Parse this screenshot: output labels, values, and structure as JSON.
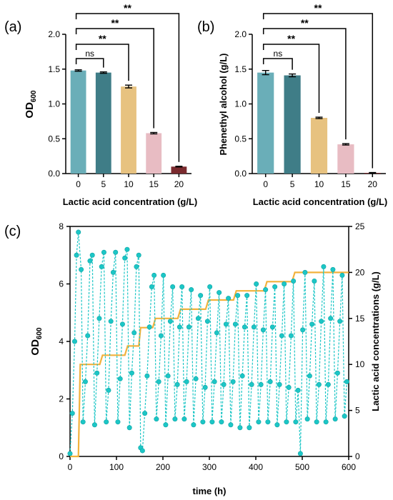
{
  "chart_data": [
    {
      "panel": "(a)",
      "type": "bar",
      "categories": [
        "0",
        "5",
        "10",
        "15",
        "20"
      ],
      "values": [
        1.48,
        1.45,
        1.25,
        0.58,
        0.1
      ],
      "errors": [
        0.01,
        0.01,
        0.02,
        0.01,
        0.005
      ],
      "colors": [
        "#6aaeb8",
        "#3f7d87",
        "#e7c280",
        "#e8bcc3",
        "#7a2a2e"
      ],
      "xlabel": "Lactic acid concentration (g/L)",
      "ylabel_main": "OD",
      "ylabel_sub": "600",
      "ylim": [
        0,
        2.0
      ],
      "yticks": [
        "0.0",
        "0.5",
        "1.0",
        "1.5",
        "2.0"
      ],
      "comparisons": [
        {
          "from": 0,
          "to": 1,
          "label": "ns"
        },
        {
          "from": 0,
          "to": 2,
          "label": "**"
        },
        {
          "from": 0,
          "to": 3,
          "label": "**"
        },
        {
          "from": 0,
          "to": 4,
          "label": "**"
        }
      ]
    },
    {
      "panel": "(b)",
      "type": "bar",
      "categories": [
        "0",
        "5",
        "10",
        "15",
        "20"
      ],
      "values": [
        1.45,
        1.41,
        0.8,
        0.42,
        0.01
      ],
      "errors": [
        0.03,
        0.02,
        0.01,
        0.01,
        0.005
      ],
      "colors": [
        "#6aaeb8",
        "#3f7d87",
        "#e7c280",
        "#e8bcc3",
        "#7a2a2e"
      ],
      "xlabel": "Lactic acid concentration (g/L)",
      "ylabel": "Phenethyl alcohol (g/L)",
      "ylim": [
        0,
        2.0
      ],
      "yticks": [
        "0.0",
        "0.5",
        "1.0",
        "1.5",
        "2.0"
      ],
      "comparisons": [
        {
          "from": 0,
          "to": 1,
          "label": "ns"
        },
        {
          "from": 0,
          "to": 2,
          "label": "**"
        },
        {
          "from": 0,
          "to": 3,
          "label": "**"
        },
        {
          "from": 0,
          "to": 4,
          "label": "**"
        }
      ]
    },
    {
      "panel": "(c)",
      "type": "line",
      "xlabel": "time (h)",
      "ylabel_main": "OD",
      "ylabel_sub": "600",
      "ylabel_right": "Lactic acid concentrations (g/L)",
      "xlim": [
        0,
        600
      ],
      "ylim": [
        0,
        8
      ],
      "ylim_right": [
        0,
        25
      ],
      "xticks": [
        "0",
        "100",
        "200",
        "300",
        "400",
        "500",
        "600"
      ],
      "yticks": [
        "0",
        "2",
        "4",
        "6",
        "8"
      ],
      "yticks_right": [
        "0",
        "5",
        "10",
        "15",
        "20",
        "25"
      ],
      "series": [
        {
          "color": "#1cc6c6",
          "x": [
            0,
            5,
            10,
            14,
            18,
            24,
            28,
            33,
            38,
            43,
            48,
            53,
            58,
            63,
            68,
            73,
            78,
            83,
            88,
            93,
            98,
            103,
            108,
            113,
            118,
            123,
            128,
            133,
            138,
            143,
            148,
            152,
            156,
            161,
            166,
            171,
            176,
            181,
            186,
            191,
            196,
            201,
            206,
            211,
            216,
            221,
            226,
            231,
            236,
            241,
            246,
            251,
            256,
            261,
            266,
            271,
            276,
            281,
            286,
            291,
            296,
            301,
            306,
            311,
            316,
            321,
            326,
            331,
            336,
            341,
            346,
            351,
            356,
            361,
            366,
            371,
            376,
            381,
            386,
            391,
            396,
            401,
            406,
            411,
            416,
            421,
            426,
            431,
            436,
            441,
            446,
            451,
            456,
            461,
            466,
            471,
            476,
            481,
            486,
            491,
            496,
            501,
            506,
            511,
            516,
            521,
            526,
            531,
            536,
            541,
            546,
            551,
            556,
            561,
            566,
            571,
            576,
            581,
            586,
            591,
            596
          ],
          "y": [
            0.1,
            1.5,
            4.0,
            7.0,
            7.8,
            6.5,
            1.2,
            2.6,
            4.2,
            6.8,
            7.0,
            1.1,
            2.9,
            4.8,
            6.6,
            7.1,
            1.2,
            2.3,
            4.7,
            6.4,
            7.1,
            1.2,
            2.7,
            4.6,
            6.9,
            7.2,
            1.0,
            2.9,
            4.3,
            6.6,
            7.0,
            0.3,
            0.2,
            1.5,
            2.8,
            4.5,
            5.9,
            6.3,
            1.3,
            2.6,
            4.2,
            6.3,
            1.1,
            2.8,
            4.7,
            5.9,
            1.3,
            2.5,
            4.5,
            5.9,
            1.3,
            2.6,
            4.5,
            5.8,
            1.1,
            2.7,
            4.8,
            5.6,
            1.2,
            2.4,
            4.7,
            5.9,
            1.2,
            2.6,
            4.3,
            5.7,
            1.2,
            2.5,
            4.6,
            5.5,
            1.1,
            2.6,
            4.6,
            5.6,
            1.0,
            2.8,
            4.5,
            5.6,
            1.0,
            2.5,
            4.5,
            6.0,
            1.2,
            2.5,
            4.4,
            5.8,
            1.2,
            2.6,
            4.5,
            5.9,
            1.1,
            2.5,
            4.2,
            6.0,
            1.2,
            2.4,
            4.2,
            6.1,
            1.2,
            2.3,
            0.1,
            4.4,
            6.4,
            1.3,
            2.8,
            4.6,
            6.1,
            1.2,
            2.5,
            4.7,
            6.6,
            1.2,
            2.5,
            4.8,
            6.5,
            1.3,
            2.9,
            4.7,
            6.3,
            1.4,
            2.6
          ]
        },
        {
          "color": "#f2b23c",
          "axis": "right",
          "step": true,
          "x": [
            0,
            18,
            22,
            64,
            70,
            118,
            124,
            148,
            152,
            178,
            184,
            232,
            238,
            292,
            298,
            352,
            358,
            418,
            424,
            478,
            484,
            600
          ],
          "y": [
            0,
            0,
            10,
            10,
            11,
            11,
            12,
            12,
            14,
            14,
            15,
            15,
            16,
            16,
            17,
            17,
            18,
            18,
            19,
            19,
            20,
            20
          ]
        }
      ]
    }
  ]
}
